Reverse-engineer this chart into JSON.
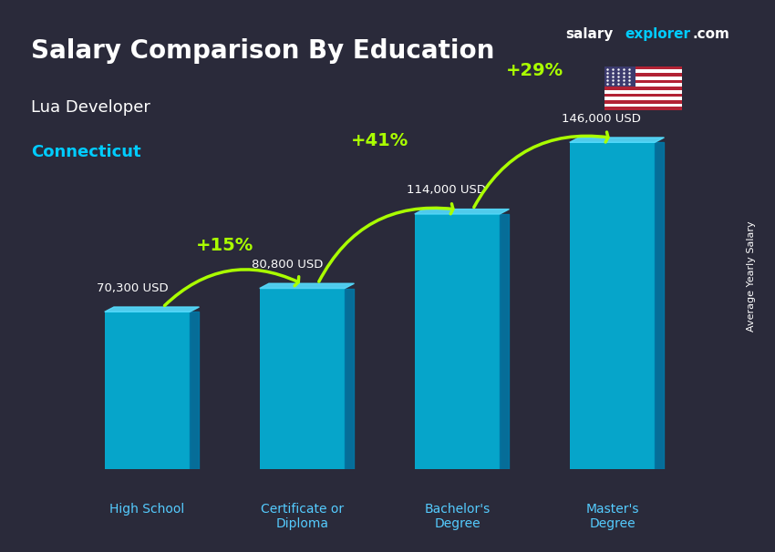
{
  "title_line1": "Salary Comparison By Education",
  "subtitle1": "Lua Developer",
  "subtitle2": "Connecticut",
  "brand": "salary",
  "brand2": "explorer",
  "brand3": ".com",
  "ylabel": "Average Yearly Salary",
  "categories": [
    "High School",
    "Certificate or\nDiploma",
    "Bachelor's\nDegree",
    "Master's\nDegree"
  ],
  "values": [
    70300,
    80800,
    114000,
    146000
  ],
  "value_labels": [
    "70,300 USD",
    "80,800 USD",
    "114,000 USD",
    "146,000 USD"
  ],
  "pct_labels": [
    "+15%",
    "+41%",
    "+29%"
  ],
  "bar_color_top": "#00c8f0",
  "bar_color_bottom": "#0090c0",
  "bar_color_highlight": "#00aadd",
  "bg_color": "#1a1a2e",
  "title_color": "#ffffff",
  "subtitle1_color": "#ffffff",
  "subtitle2_color": "#00ccff",
  "value_label_color": "#ffffff",
  "pct_color": "#aaff00",
  "xlim": [
    -0.7,
    3.7
  ],
  "ylim": [
    0,
    180000
  ],
  "bar_width": 0.55
}
